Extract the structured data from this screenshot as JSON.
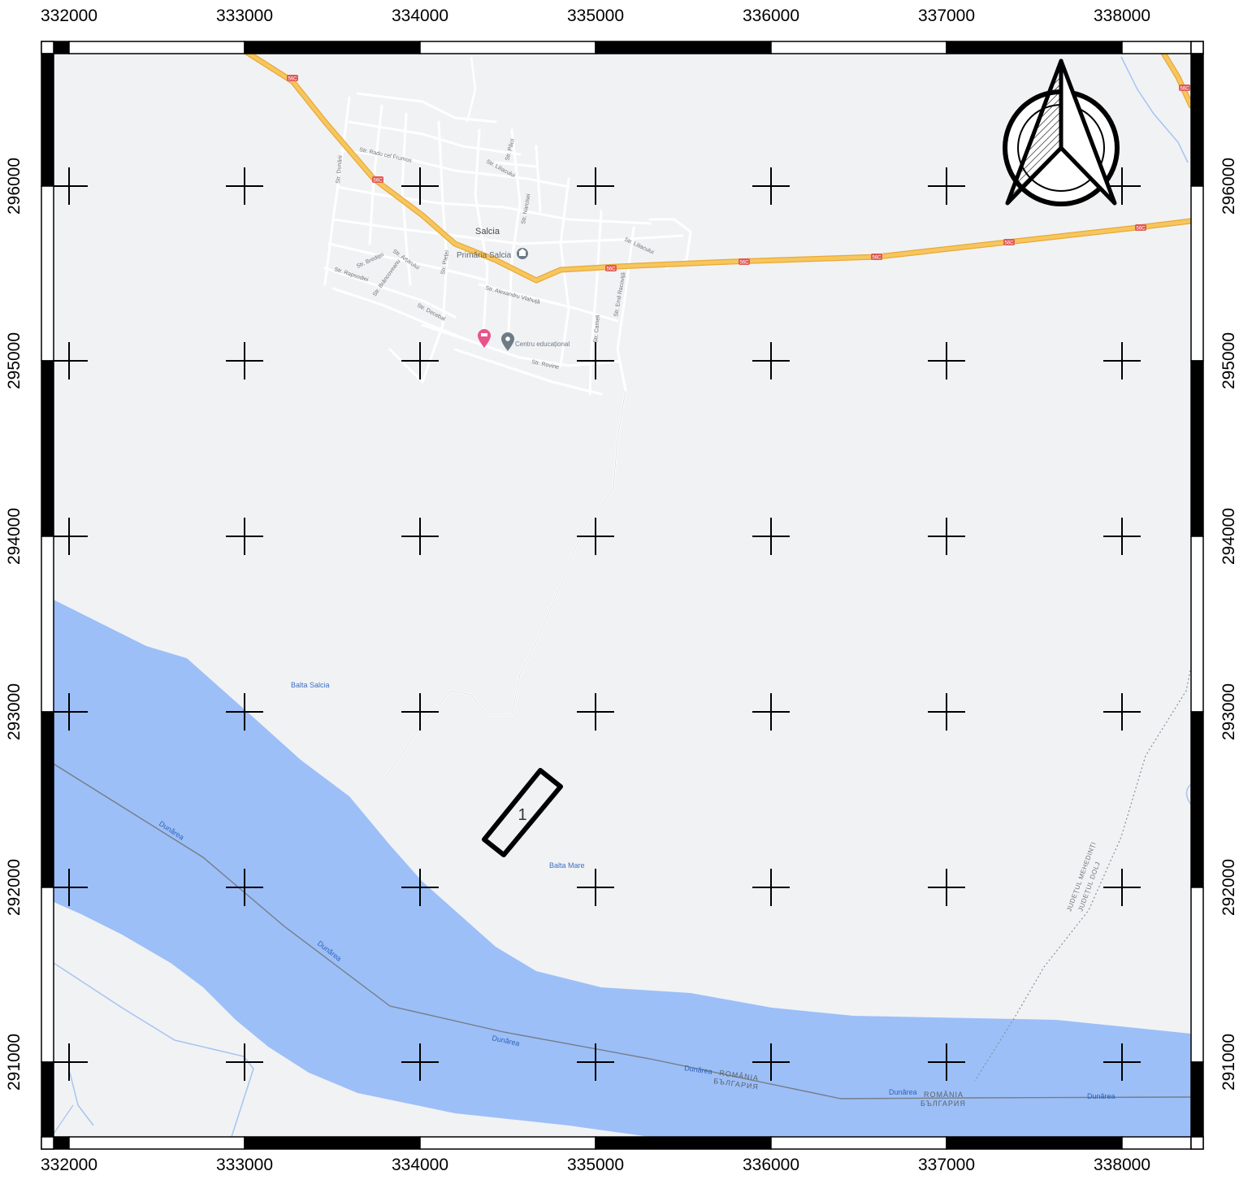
{
  "coordinates": {
    "x_ticks": [
      "332000",
      "333000",
      "334000",
      "335000",
      "336000",
      "337000",
      "338000"
    ],
    "y_ticks": [
      "296000",
      "295000",
      "294000",
      "293000",
      "292000",
      "291000"
    ]
  },
  "places": {
    "town": "Salcia",
    "town_hall": "Primăria Salcia",
    "education": "Centru educațional",
    "lake1": "Balta Salcia",
    "lake2": "Balta Mare"
  },
  "streets": {
    "s1": "Str. Radu cel Frumos",
    "s2": "Str. Păcii",
    "s3": "Str. Liliacului",
    "s4": "Str. Narcisei",
    "s5": "Str. Dunării",
    "s6": "Str. Brediței",
    "s7": "Str. Arțarului",
    "s8": "Str. Rapsodiei",
    "s9": "Str. Brâncoveanu",
    "s10": "Str. Alexandru Vlahuță",
    "s11": "Str. Decebal",
    "s12": "Str. Liliacului",
    "s13": "Str. Emil Racoviță",
    "s14": "Str. Cameli",
    "s15": "Str. Rovine",
    "s16": "Str. Pieței"
  },
  "road_shield": "56C",
  "river": {
    "name": "Dunărea",
    "border_ro": "ROMÂNIA",
    "border_bg": "БЪЛГАРИЯ"
  },
  "county_border": {
    "line1": "JUDEȚUL MEHEDINȚI",
    "line2": "JUDEȚUL DOLJ"
  },
  "site": {
    "label": "1"
  },
  "colors": {
    "land": "#f1f2f4",
    "water": "#9cbff8",
    "road": "#f7c65c",
    "road_edge": "#e8a93a",
    "street": "#ffffff",
    "shield": "#e05a55",
    "pin_red": "#e8548a",
    "pin_grey": "#6c7b86"
  },
  "icons": [
    "north-arrow-icon",
    "town-hall-icon",
    "hotel-pin-icon",
    "poi-pin-icon"
  ]
}
